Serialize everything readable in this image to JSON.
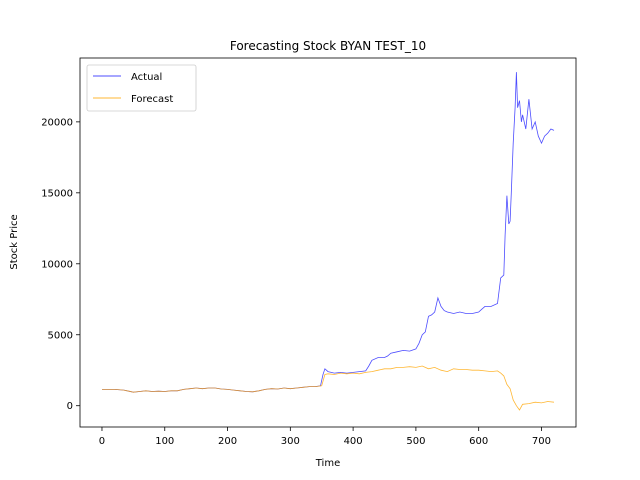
{
  "chart_data": {
    "type": "line",
    "title": "Forecasting Stock BYAN TEST_10",
    "xlabel": "Time",
    "ylabel": "Stock Price",
    "xlim": [
      -35,
      755
    ],
    "ylim": [
      -1500,
      24500
    ],
    "xticks": [
      0,
      100,
      200,
      300,
      400,
      500,
      600,
      700
    ],
    "yticks": [
      0,
      5000,
      10000,
      15000,
      20000
    ],
    "legend_position": "top-left",
    "grid": false,
    "series": [
      {
        "name": "Actual",
        "color": "#0000ff",
        "x": [
          0,
          20,
          35,
          40,
          50,
          60,
          70,
          80,
          90,
          100,
          110,
          120,
          130,
          140,
          150,
          160,
          170,
          180,
          190,
          200,
          210,
          220,
          230,
          240,
          250,
          260,
          270,
          280,
          290,
          300,
          310,
          320,
          330,
          340,
          348,
          352,
          355,
          360,
          370,
          380,
          390,
          400,
          410,
          420,
          425,
          430,
          440,
          450,
          455,
          460,
          470,
          480,
          490,
          500,
          505,
          510,
          515,
          520,
          525,
          530,
          535,
          540,
          545,
          550,
          560,
          570,
          580,
          590,
          600,
          605,
          610,
          620,
          630,
          635,
          640,
          642,
          645,
          648,
          650,
          652,
          655,
          658,
          660,
          662,
          665,
          668,
          670,
          675,
          680,
          685,
          690,
          695,
          700,
          705,
          710,
          715,
          720
        ],
        "y": [
          1150,
          1150,
          1100,
          1050,
          950,
          1000,
          1050,
          1000,
          1020,
          1000,
          1050,
          1050,
          1150,
          1200,
          1250,
          1200,
          1250,
          1250,
          1180,
          1150,
          1100,
          1050,
          1000,
          980,
          1050,
          1150,
          1200,
          1180,
          1250,
          1200,
          1250,
          1300,
          1350,
          1350,
          1400,
          2200,
          2600,
          2400,
          2300,
          2350,
          2300,
          2350,
          2400,
          2450,
          2800,
          3200,
          3400,
          3400,
          3500,
          3700,
          3800,
          3900,
          3850,
          4000,
          4400,
          5000,
          5200,
          6300,
          6400,
          6600,
          7600,
          7000,
          6700,
          6600,
          6500,
          6600,
          6500,
          6500,
          6600,
          6800,
          7000,
          7000,
          7200,
          9000,
          9200,
          12000,
          14800,
          12800,
          13000,
          15000,
          18500,
          21000,
          23500,
          21000,
          21500,
          20000,
          20500,
          19500,
          21600,
          19500,
          20000,
          19000,
          18500,
          19000,
          19200,
          19500,
          19400
        ]
      },
      {
        "name": "Forecast",
        "color": "#ffa500",
        "x": [
          0,
          20,
          35,
          40,
          50,
          60,
          70,
          80,
          90,
          100,
          110,
          120,
          130,
          140,
          150,
          160,
          170,
          180,
          190,
          200,
          210,
          220,
          230,
          240,
          250,
          260,
          270,
          280,
          290,
          300,
          310,
          320,
          330,
          340,
          350,
          355,
          360,
          370,
          380,
          390,
          400,
          410,
          420,
          430,
          440,
          450,
          460,
          470,
          480,
          490,
          500,
          510,
          520,
          530,
          540,
          550,
          560,
          570,
          580,
          590,
          600,
          610,
          620,
          630,
          635,
          640,
          645,
          650,
          655,
          660,
          665,
          670,
          680,
          690,
          700,
          710,
          720
        ],
        "y": [
          1150,
          1150,
          1100,
          1050,
          950,
          1000,
          1050,
          1000,
          1020,
          1000,
          1050,
          1050,
          1150,
          1200,
          1250,
          1200,
          1250,
          1250,
          1180,
          1150,
          1100,
          1050,
          1000,
          980,
          1050,
          1150,
          1200,
          1180,
          1250,
          1200,
          1250,
          1300,
          1350,
          1350,
          1400,
          2200,
          2250,
          2200,
          2300,
          2250,
          2300,
          2250,
          2350,
          2400,
          2500,
          2600,
          2600,
          2700,
          2700,
          2750,
          2700,
          2800,
          2600,
          2700,
          2500,
          2400,
          2600,
          2550,
          2550,
          2500,
          2500,
          2450,
          2400,
          2450,
          2300,
          2100,
          1500,
          1200,
          400,
          0,
          -300,
          100,
          150,
          250,
          200,
          300,
          250
        ]
      }
    ]
  }
}
